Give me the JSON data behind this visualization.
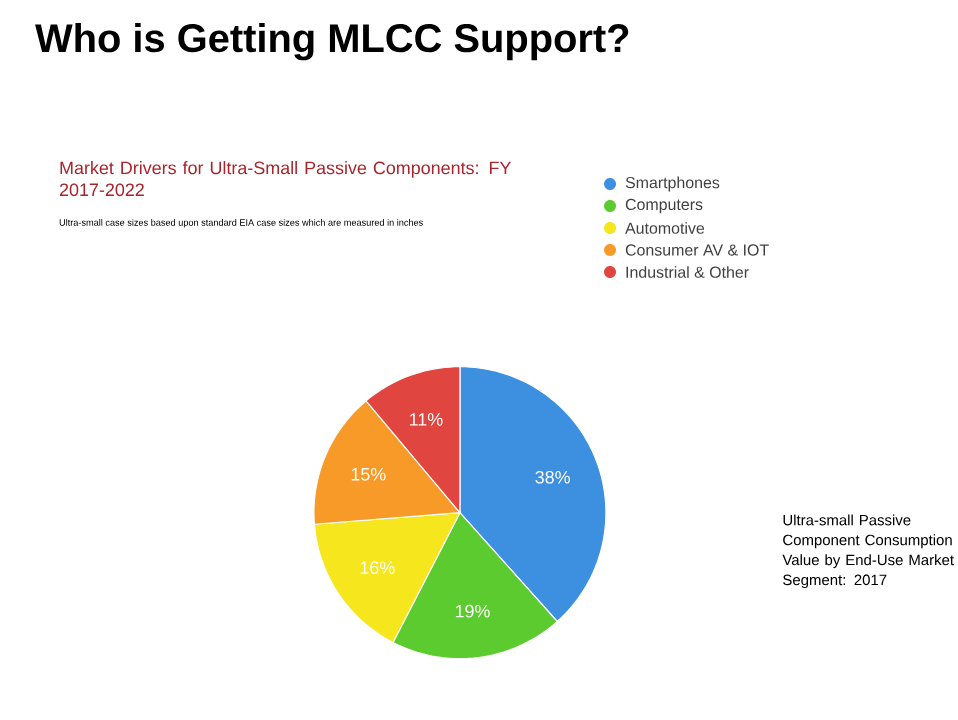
{
  "chart_data": {
    "type": "pie",
    "title": "Who is Getting MLCC Support?",
    "subtitle": "Market Drivers for Ultra-Small Passive Components: FY 2017-2022",
    "categories": [
      "Smartphones",
      "Computers",
      "Automotive",
      "Consumer AV & IOT",
      "Industrial & Other"
    ],
    "values": [
      38,
      19,
      16,
      15,
      11
    ],
    "colors": [
      "#3d8fe0",
      "#5ccb2f",
      "#f5e61d",
      "#f79a27",
      "#e0453f"
    ],
    "value_labels": [
      "38%",
      "19%",
      "16%",
      "15%",
      "11%"
    ],
    "legend": "top right",
    "annotations": [
      "Ultra-small case sizes based upon standard EIA case sizes which are measured in inches",
      "Ultra-small Passive Component Consumption Value by End-Use Market Segment: 2017"
    ]
  }
}
